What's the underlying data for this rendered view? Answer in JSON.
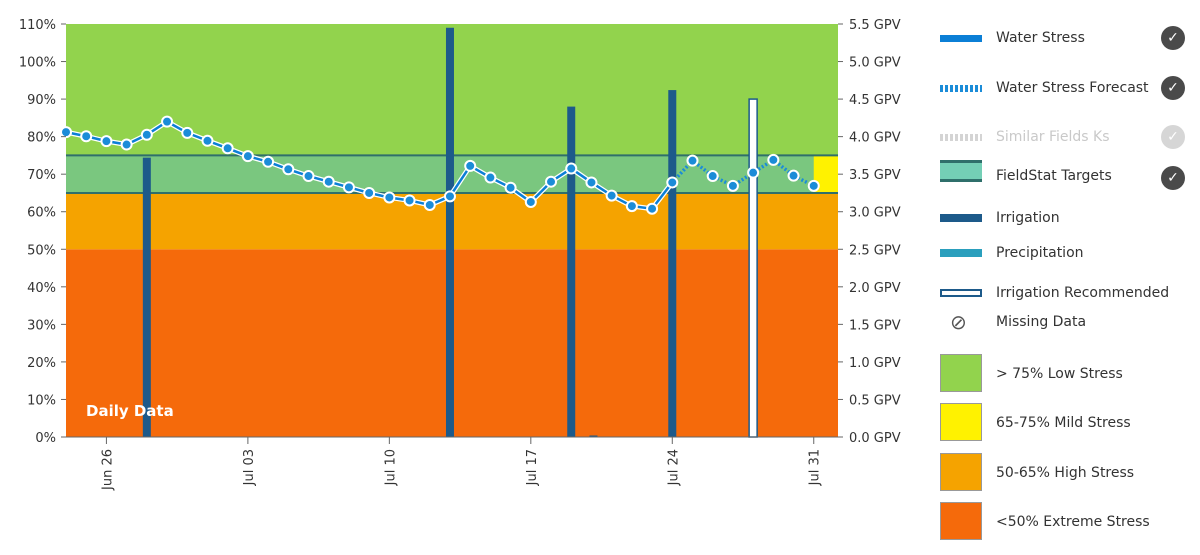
{
  "chart_data": {
    "type": "line",
    "left_axis": {
      "ticks": [
        "0%",
        "10%",
        "20%",
        "30%",
        "40%",
        "50%",
        "60%",
        "70%",
        "80%",
        "90%",
        "100%",
        "110%"
      ],
      "ylim": [
        0,
        110
      ]
    },
    "right_axis": {
      "ticks": [
        "0.0 GPV",
        "0.5 GPV",
        "1.0 GPV",
        "1.5 GPV",
        "2.0 GPV",
        "2.5 GPV",
        "3.0 GPV",
        "3.5 GPV",
        "4.0 GPV",
        "4.5 GPV",
        "5.0 GPV",
        "5.5 GPV"
      ],
      "ylim": [
        0,
        5.5
      ]
    },
    "x_ticks": [
      "Jun 26",
      "Jul 03",
      "Jul 10",
      "Jul 17",
      "Jul 24",
      "Jul 31"
    ],
    "x_tick_days": [
      2,
      9,
      16,
      23,
      30,
      37
    ],
    "x_range_days": [
      0,
      38.2
    ],
    "bands": [
      {
        "name": "<50% Extreme Stress",
        "from": 0,
        "to": 50,
        "color": "#f56a0b"
      },
      {
        "name": "50-65% High Stress",
        "from": 50,
        "to": 65,
        "color": "#f5a300"
      },
      {
        "name": "65-75% Mild Stress",
        "from": 65,
        "to": 75,
        "color": "#fff200"
      },
      {
        "name": "> 75% Low Stress",
        "from": 75,
        "to": 110,
        "color": "#92d34d"
      }
    ],
    "target_band": {
      "from": 65,
      "to": 75,
      "color": "#7ac77f",
      "line_color": "#2f6f6b"
    },
    "water_stress": {
      "days": [
        0,
        1,
        2,
        3,
        4,
        5,
        6,
        7,
        8,
        9,
        10,
        11,
        12,
        13,
        14,
        15,
        16,
        17,
        18,
        19,
        20,
        21,
        22,
        23,
        24,
        25,
        26,
        27,
        28,
        29,
        30
      ],
      "values": [
        81.2,
        80.1,
        78.8,
        77.9,
        80.5,
        84.0,
        81.0,
        78.9,
        76.9,
        74.8,
        73.3,
        71.3,
        69.5,
        68.0,
        66.5,
        65.0,
        63.8,
        63.0,
        61.8,
        64.1,
        72.2,
        69.1,
        66.4,
        62.6,
        68.0,
        71.5,
        67.8,
        64.3,
        61.5,
        60.8,
        67.8
      ]
    },
    "water_stress_forecast": {
      "days": [
        30,
        31,
        32,
        33,
        34,
        35,
        36,
        37
      ],
      "values": [
        67.8,
        73.6,
        69.5,
        66.9,
        70.4,
        73.8,
        69.6,
        66.9
      ]
    },
    "irrigation_gpv": [
      {
        "day": 4.0,
        "value": 3.72
      },
      {
        "day": 19.0,
        "value": 5.45
      },
      {
        "day": 25.0,
        "value": 4.4
      },
      {
        "day": 26.1,
        "value": 0.02
      },
      {
        "day": 30.0,
        "value": 4.62
      }
    ],
    "irrigation_recommended_gpv": [
      {
        "day": 34.0,
        "value": 4.5
      }
    ],
    "annotation": "Daily Data"
  },
  "legend": {
    "items": [
      {
        "label": "Water Stress",
        "checked": true
      },
      {
        "label": "Water Stress Forecast",
        "checked": true
      },
      {
        "label": "Similar Fields Ks",
        "checked": false
      },
      {
        "label": "FieldStat Targets",
        "checked": true
      },
      {
        "label": "Irrigation"
      },
      {
        "label": "Precipitation"
      },
      {
        "label": "Irrigation Recommended"
      },
      {
        "label": "Missing Data"
      },
      {
        "label": "> 75% Low Stress"
      },
      {
        "label": "65-75% Mild Stress"
      },
      {
        "label": "50-65% High Stress"
      },
      {
        "label": "<50% Extreme Stress"
      }
    ],
    "check_glyph": "✓",
    "missing_glyph": "⊘",
    "colors": {
      "water_stress": "#0b7fd6",
      "forecast": "#1b8cd8",
      "similar": "#d4d4d4",
      "targets_fill": "#74cfb6",
      "targets_line": "#2f6f6b",
      "irrigation": "#1d5a8a",
      "precipitation": "#2a9fbd",
      "low": "#92d34d",
      "mild": "#fff200",
      "high": "#f5a300",
      "extreme": "#f56a0b"
    }
  }
}
